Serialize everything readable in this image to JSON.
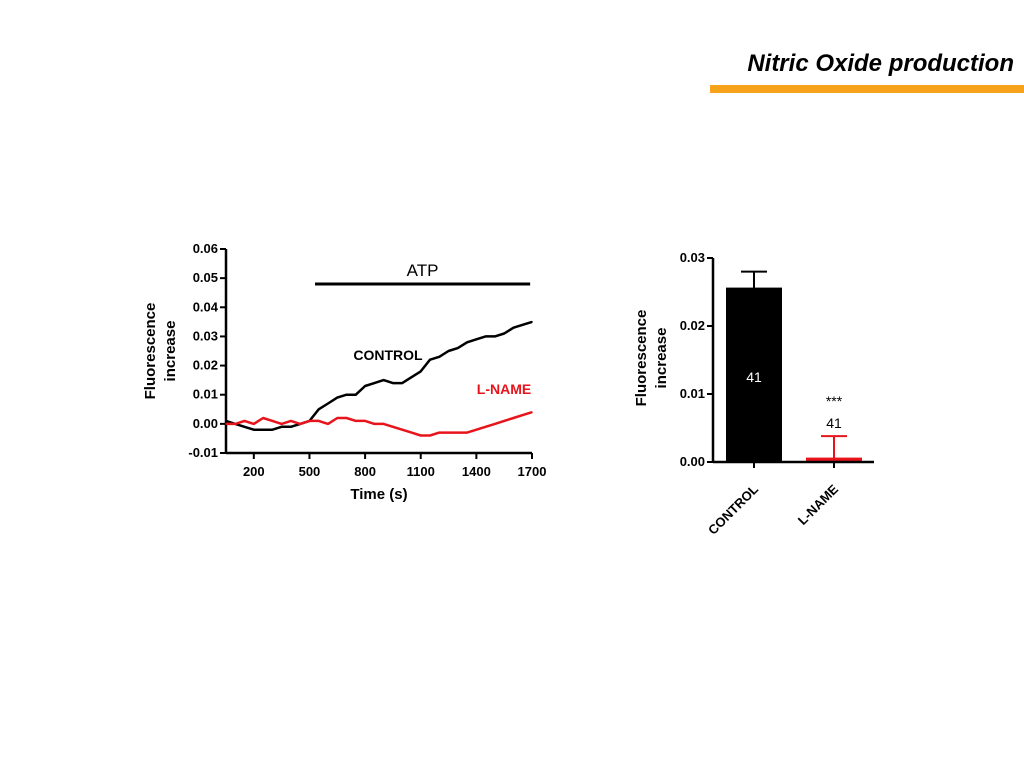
{
  "slide": {
    "title": "Nitric Oxide production",
    "accent_color": "#F7A21B"
  },
  "chart_data": [
    {
      "type": "line",
      "title": "",
      "xlabel": "Time (s)",
      "ylabel": "Fluorescence increase",
      "ylabel_lines": [
        "Fluorescence",
        "increase"
      ],
      "xlim": [
        50,
        1700
      ],
      "ylim": [
        -0.01,
        0.06
      ],
      "x_ticks": [
        200,
        500,
        800,
        1100,
        1400,
        1700
      ],
      "y_ticks": [
        -0.01,
        0.0,
        0.01,
        0.02,
        0.03,
        0.04,
        0.05,
        0.06
      ],
      "y_tick_labels": [
        "-0.01",
        "0.00",
        "0.01",
        "0.02",
        "0.03",
        "0.04",
        "0.05",
        "0.06"
      ],
      "annotation_bar": {
        "label": "ATP",
        "x_start": 530,
        "x_end": 1690,
        "y": 0.048
      },
      "series": [
        {
          "name": "CONTROL",
          "color": "#000000",
          "x": [
            50,
            100,
            150,
            200,
            250,
            300,
            350,
            400,
            450,
            500,
            550,
            600,
            650,
            700,
            750,
            800,
            850,
            900,
            950,
            1000,
            1050,
            1100,
            1150,
            1200,
            1250,
            1300,
            1350,
            1400,
            1450,
            1500,
            1550,
            1600,
            1650,
            1700
          ],
          "y": [
            0.001,
            0.0,
            -0.001,
            -0.002,
            -0.002,
            -0.002,
            -0.001,
            -0.001,
            0.0,
            0.001,
            0.005,
            0.007,
            0.009,
            0.01,
            0.01,
            0.013,
            0.014,
            0.015,
            0.014,
            0.014,
            0.016,
            0.018,
            0.022,
            0.023,
            0.025,
            0.026,
            0.028,
            0.029,
            0.03,
            0.03,
            0.031,
            0.033,
            0.034,
            0.035
          ]
        },
        {
          "name": "L-NAME",
          "color": "#E8141B",
          "x": [
            50,
            100,
            150,
            200,
            250,
            300,
            350,
            400,
            450,
            500,
            550,
            600,
            650,
            700,
            750,
            800,
            850,
            900,
            950,
            1000,
            1050,
            1100,
            1150,
            1200,
            1250,
            1300,
            1350,
            1400,
            1450,
            1500,
            1550,
            1600,
            1650,
            1700
          ],
          "y": [
            0.0,
            0.0,
            0.001,
            0.0,
            0.002,
            0.001,
            0.0,
            0.001,
            0.0,
            0.001,
            0.001,
            0.0,
            0.002,
            0.002,
            0.001,
            0.001,
            0.0,
            0.0,
            -0.001,
            -0.002,
            -0.003,
            -0.004,
            -0.004,
            -0.003,
            -0.003,
            -0.003,
            -0.003,
            -0.002,
            -0.001,
            0.0,
            0.001,
            0.002,
            0.003,
            0.004
          ]
        }
      ]
    },
    {
      "type": "bar",
      "title": "",
      "xlabel": "",
      "ylabel": "Fluorescence increase",
      "ylabel_lines": [
        "Fluorescence",
        "increase"
      ],
      "ylim": [
        0.0,
        0.03
      ],
      "y_ticks": [
        0.0,
        0.01,
        0.02,
        0.03
      ],
      "y_tick_labels": [
        "0.00",
        "0.01",
        "0.02",
        "0.03"
      ],
      "categories": [
        "CONTROL",
        "L-NAME"
      ],
      "values": [
        0.0255,
        0.0005
      ],
      "error": [
        0.0025,
        0.0033
      ],
      "bar_colors": [
        "#000000",
        "#E8141B"
      ],
      "n_labels": [
        "41",
        "41"
      ],
      "significance": [
        "",
        "***"
      ]
    }
  ]
}
